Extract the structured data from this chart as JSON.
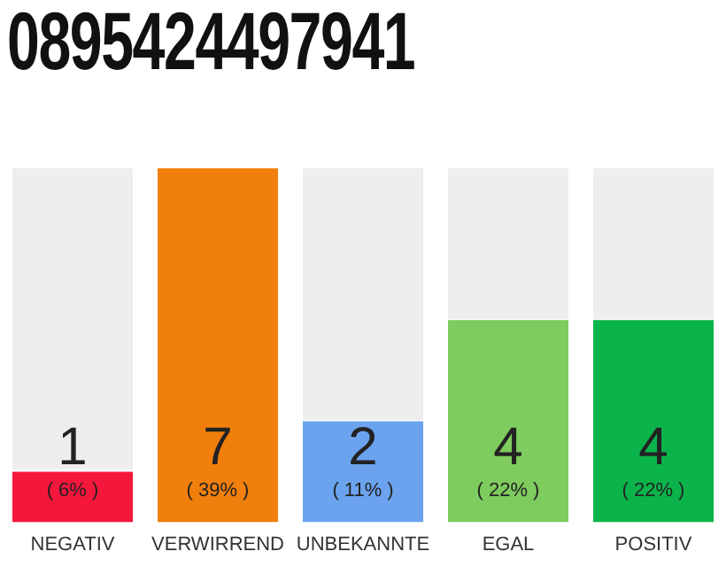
{
  "chart_data": {
    "type": "bar",
    "title": "0895424497941",
    "categories": [
      "NEGATIV",
      "VERWIRREND",
      "UNBEKANNTE",
      "EGAL",
      "POSITIV"
    ],
    "values": [
      1,
      7,
      2,
      4,
      4
    ],
    "colors": [
      "#f5163b",
      "#f07f0c",
      "#6ba3ee",
      "#7ecb5e",
      "#0bb44a"
    ],
    "ylim": [
      0,
      7
    ],
    "data_labels": true,
    "grid": false,
    "legend": false,
    "annotations": [
      "( 6% )",
      "( 39% )",
      "( 11% )",
      "( 22% )",
      "( 22% )"
    ]
  }
}
